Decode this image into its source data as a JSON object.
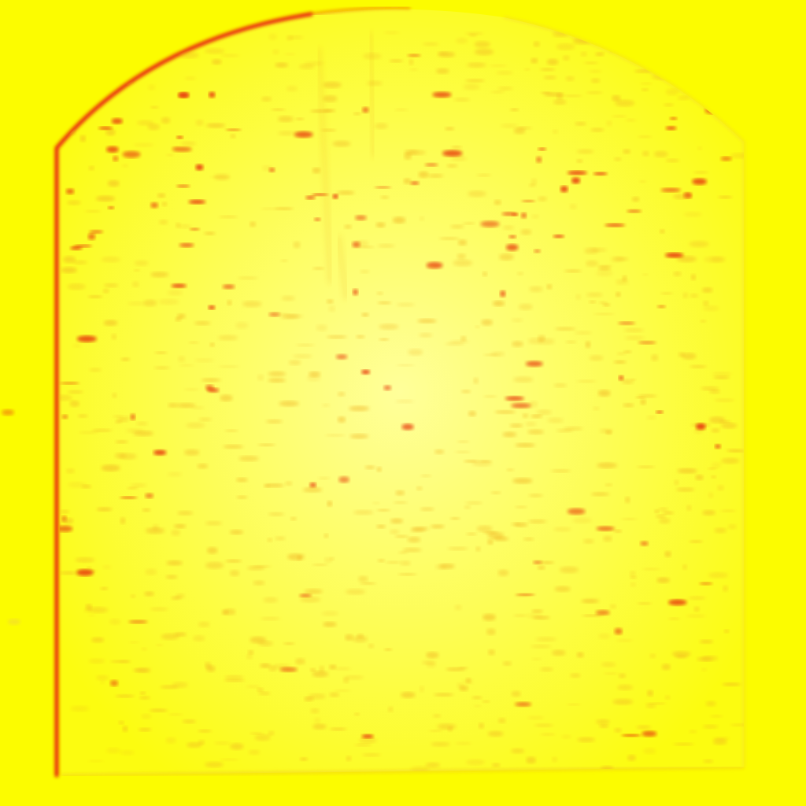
{
  "image": {
    "subject": "",
    "background_color": "#fcfc00",
    "slab_fill_color": "#fdfd40",
    "slab_highlight_color": "#ffff9a",
    "edge_color": "#e8200a",
    "spot_color_light": "#f0b020",
    "spot_color_dark": "#e84010"
  }
}
